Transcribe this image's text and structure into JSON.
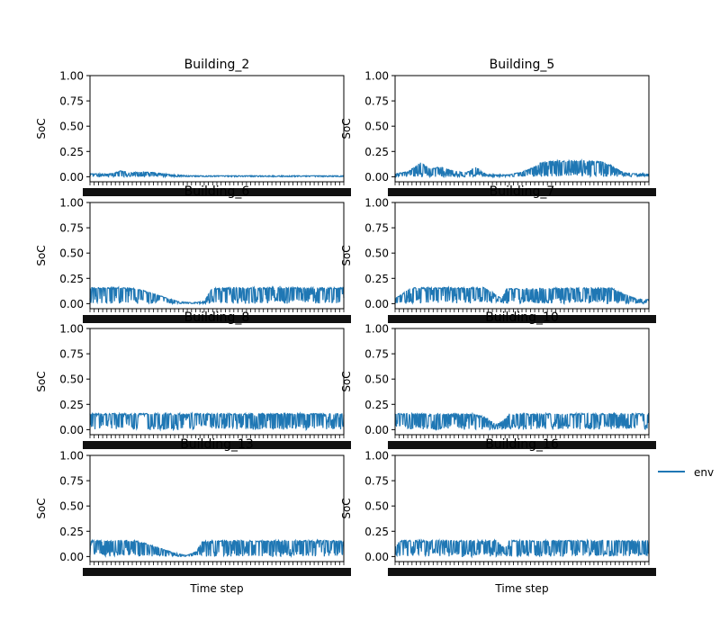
{
  "figure": {
    "legend": {
      "label": "env",
      "placement": "right-center"
    },
    "colors": {
      "series": "#1f77b4",
      "axes": "#000000",
      "background": "#ffffff"
    }
  },
  "chart_data": [
    {
      "type": "line",
      "title": "Building_2",
      "xlabel": "",
      "ylabel": "SoC",
      "ylim": [
        0,
        1
      ],
      "yticks": [
        "0.00",
        "0.25",
        "0.50",
        "0.75",
        "1.00"
      ],
      "x_range": [
        0,
        1
      ],
      "grid": false,
      "series": [
        {
          "name": "env",
          "envelope": [
            [
              0.0,
              0.03
            ],
            [
              0.08,
              0.03
            ],
            [
              0.12,
              0.06
            ],
            [
              0.16,
              0.04
            ],
            [
              0.2,
              0.05
            ],
            [
              0.26,
              0.04
            ],
            [
              0.32,
              0.02
            ],
            [
              0.4,
              0.01
            ],
            [
              0.5,
              0.01
            ],
            [
              0.6,
              0.01
            ],
            [
              0.7,
              0.01
            ],
            [
              0.8,
              0.01
            ],
            [
              0.9,
              0.01
            ],
            [
              1.0,
              0.01
            ]
          ]
        }
      ]
    },
    {
      "type": "line",
      "title": "Building_5",
      "xlabel": "",
      "ylabel": "SoC",
      "ylim": [
        0,
        1
      ],
      "yticks": [
        "0.00",
        "0.25",
        "0.50",
        "0.75",
        "1.00"
      ],
      "x_range": [
        0,
        1
      ],
      "grid": false,
      "series": [
        {
          "name": "env",
          "envelope": [
            [
              0.0,
              0.03
            ],
            [
              0.05,
              0.05
            ],
            [
              0.1,
              0.14
            ],
            [
              0.14,
              0.08
            ],
            [
              0.18,
              0.1
            ],
            [
              0.22,
              0.07
            ],
            [
              0.28,
              0.04
            ],
            [
              0.32,
              0.1
            ],
            [
              0.36,
              0.02
            ],
            [
              0.45,
              0.02
            ],
            [
              0.5,
              0.05
            ],
            [
              0.55,
              0.1
            ],
            [
              0.58,
              0.15
            ],
            [
              0.65,
              0.16
            ],
            [
              0.75,
              0.16
            ],
            [
              0.82,
              0.15
            ],
            [
              0.86,
              0.1
            ],
            [
              0.9,
              0.04
            ],
            [
              0.95,
              0.03
            ],
            [
              1.0,
              0.03
            ]
          ]
        }
      ]
    },
    {
      "type": "line",
      "title": "Building_6",
      "xlabel": "",
      "ylabel": "SoC",
      "ylim": [
        0,
        1
      ],
      "yticks": [
        "0.00",
        "0.25",
        "0.50",
        "0.75",
        "1.00"
      ],
      "x_range": [
        0,
        1
      ],
      "grid": false,
      "series": [
        {
          "name": "env",
          "envelope": [
            [
              0.0,
              0.16
            ],
            [
              0.15,
              0.16
            ],
            [
              0.2,
              0.14
            ],
            [
              0.25,
              0.1
            ],
            [
              0.3,
              0.06
            ],
            [
              0.35,
              0.02
            ],
            [
              0.4,
              0.01
            ],
            [
              0.45,
              0.02
            ],
            [
              0.48,
              0.15
            ],
            [
              0.55,
              0.16
            ],
            [
              1.0,
              0.16
            ]
          ]
        }
      ]
    },
    {
      "type": "line",
      "title": "Building_7",
      "xlabel": "",
      "ylabel": "SoC",
      "ylim": [
        0,
        1
      ],
      "yticks": [
        "0.00",
        "0.25",
        "0.50",
        "0.75",
        "1.00"
      ],
      "x_range": [
        0,
        1
      ],
      "grid": false,
      "series": [
        {
          "name": "env",
          "envelope": [
            [
              0.0,
              0.05
            ],
            [
              0.03,
              0.1
            ],
            [
              0.06,
              0.16
            ],
            [
              0.35,
              0.16
            ],
            [
              0.38,
              0.12
            ],
            [
              0.42,
              0.05
            ],
            [
              0.44,
              0.15
            ],
            [
              0.85,
              0.16
            ],
            [
              0.9,
              0.1
            ],
            [
              0.95,
              0.05
            ],
            [
              1.0,
              0.04
            ]
          ]
        }
      ]
    },
    {
      "type": "line",
      "title": "Building_8",
      "xlabel": "",
      "ylabel": "SoC",
      "ylim": [
        0,
        1
      ],
      "yticks": [
        "0.00",
        "0.25",
        "0.50",
        "0.75",
        "1.00"
      ],
      "x_range": [
        0,
        1
      ],
      "grid": false,
      "series": [
        {
          "name": "env",
          "envelope": [
            [
              0.0,
              0.16
            ],
            [
              1.0,
              0.16
            ]
          ]
        }
      ]
    },
    {
      "type": "line",
      "title": "Building_10",
      "xlabel": "",
      "ylabel": "SoC",
      "ylim": [
        0,
        1
      ],
      "yticks": [
        "0.00",
        "0.25",
        "0.50",
        "0.75",
        "1.00"
      ],
      "x_range": [
        0,
        1
      ],
      "grid": false,
      "series": [
        {
          "name": "env",
          "envelope": [
            [
              0.0,
              0.16
            ],
            [
              0.3,
              0.16
            ],
            [
              0.36,
              0.12
            ],
            [
              0.4,
              0.05
            ],
            [
              0.43,
              0.1
            ],
            [
              0.45,
              0.16
            ],
            [
              1.0,
              0.16
            ]
          ]
        }
      ]
    },
    {
      "type": "line",
      "title": "Building_13",
      "xlabel": "Time step",
      "ylabel": "SoC",
      "ylim": [
        0,
        1
      ],
      "yticks": [
        "0.00",
        "0.25",
        "0.50",
        "0.75",
        "1.00"
      ],
      "x_range": [
        0,
        1
      ],
      "grid": false,
      "series": [
        {
          "name": "env",
          "envelope": [
            [
              0.0,
              0.16
            ],
            [
              0.18,
              0.16
            ],
            [
              0.22,
              0.13
            ],
            [
              0.28,
              0.08
            ],
            [
              0.33,
              0.04
            ],
            [
              0.38,
              0.01
            ],
            [
              0.42,
              0.05
            ],
            [
              0.44,
              0.15
            ],
            [
              0.5,
              0.16
            ],
            [
              1.0,
              0.16
            ]
          ]
        }
      ]
    },
    {
      "type": "line",
      "title": "Building_16",
      "xlabel": "Time step",
      "ylabel": "SoC",
      "ylim": [
        0,
        1
      ],
      "yticks": [
        "0.00",
        "0.25",
        "0.50",
        "0.75",
        "1.00"
      ],
      "x_range": [
        0,
        1
      ],
      "grid": false,
      "series": [
        {
          "name": "env",
          "envelope": [
            [
              0.0,
              0.1
            ],
            [
              0.02,
              0.16
            ],
            [
              0.4,
              0.16
            ],
            [
              0.42,
              0.1
            ],
            [
              0.45,
              0.16
            ],
            [
              1.0,
              0.16
            ]
          ]
        }
      ]
    }
  ]
}
